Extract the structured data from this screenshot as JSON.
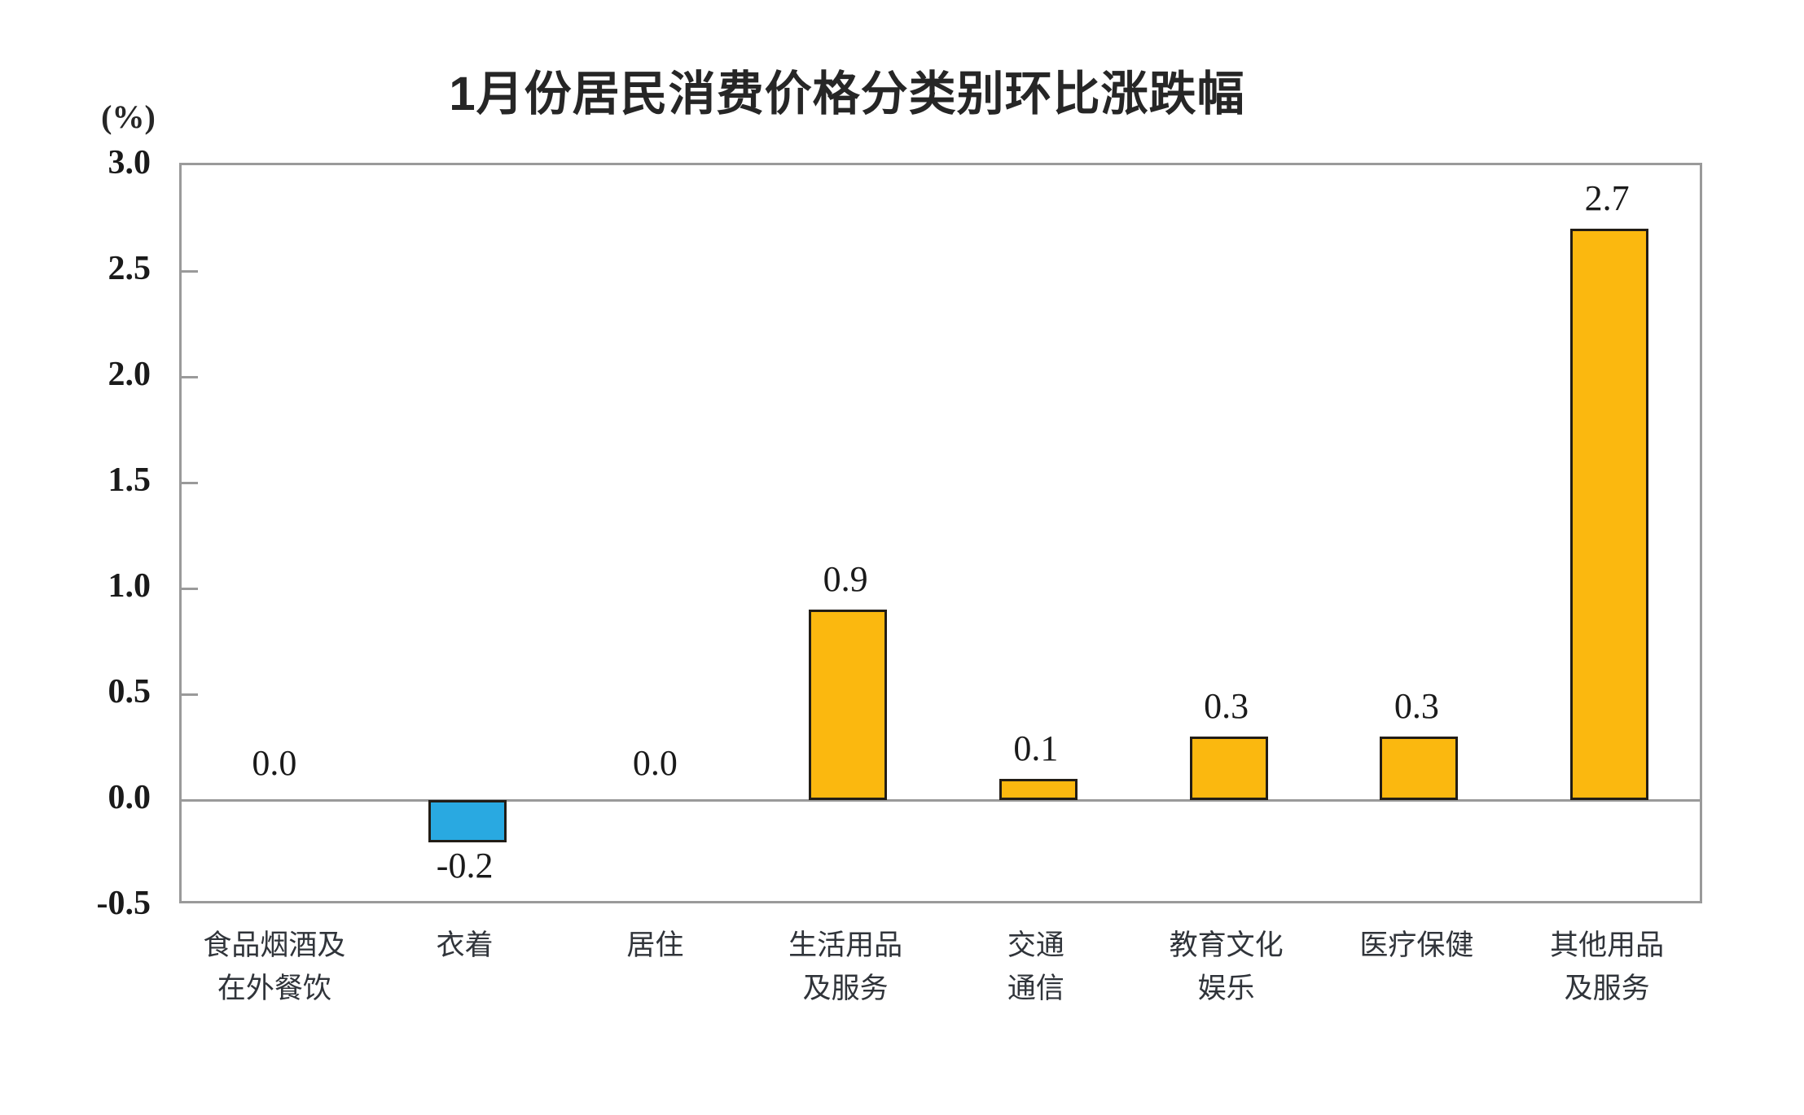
{
  "title": "1月份居民消费价格分类别环比涨跌幅",
  "chart_data": {
    "type": "bar",
    "title": "1月份居民消费价格分类别环比涨跌幅",
    "ylabel": "(%)",
    "xlabel": "",
    "categories": [
      "食品烟酒及\n在外餐饮",
      "衣着",
      "居住",
      "生活用品\n及服务",
      "交通\n通信",
      "教育文化\n娱乐",
      "医疗保健",
      "其他用品\n及服务"
    ],
    "values": [
      0.0,
      -0.2,
      0.0,
      0.9,
      0.1,
      0.3,
      0.3,
      2.7
    ],
    "value_labels": [
      "0.0",
      "-0.2",
      "0.0",
      "0.9",
      "0.1",
      "0.3",
      "0.3",
      "2.7"
    ],
    "ylim": [
      -0.5,
      3.0
    ],
    "yticks": [
      3.0,
      2.5,
      2.0,
      1.5,
      1.0,
      0.5,
      0.0,
      -0.5
    ],
    "ytick_labels": [
      "3.0",
      "2.5",
      "2.0",
      "1.5",
      "1.0",
      "0.5",
      "0.0",
      "-0.5"
    ],
    "grid": false,
    "legend_position": "none",
    "colors": {
      "positive_bar": "#FBB80F",
      "negative_bar": "#29A9E1",
      "bar_border": "#221d16",
      "axis_border": "#9a9a9a",
      "zero_line": "#9a9a9a",
      "text": "#1a1a1a"
    }
  }
}
